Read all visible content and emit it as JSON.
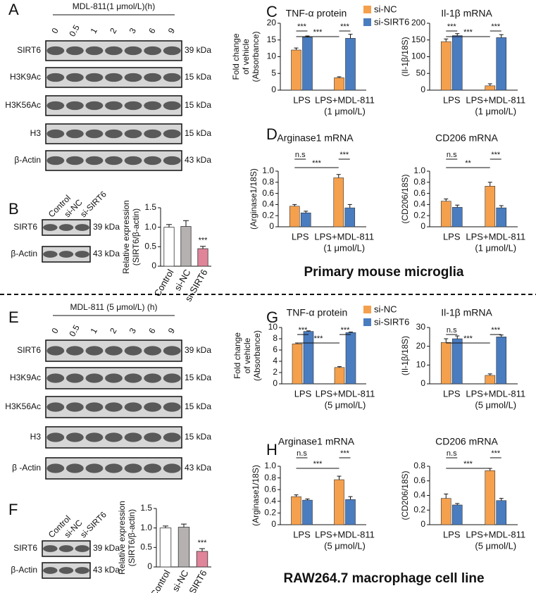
{
  "sections": [
    "Primary mouse microglia",
    "RAW264.7 macrophage cell line"
  ],
  "blots": [
    {
      "panel": "A",
      "header": "MDL-811(1 μmol/L)(h)",
      "lanes": [
        "0",
        "0.5",
        "1",
        "2",
        "3",
        "6",
        "9"
      ],
      "rows": [
        {
          "label": "SIRT6",
          "size": "39 kDa"
        },
        {
          "label": "H3K9Ac",
          "size": "15 kDa"
        },
        {
          "label": "H3K56Ac",
          "size": "15 kDa"
        },
        {
          "label": "H3",
          "size": "15 kDa"
        },
        {
          "label": "β-Actin",
          "size": "43 kDa"
        }
      ]
    },
    {
      "panel": "B",
      "lanes": [
        "Control",
        "si-NC",
        "si-SIRT6"
      ],
      "rows": [
        {
          "label": "SIRT6",
          "size": "39 kDa"
        },
        {
          "label": "β-Actin",
          "size": "43 kDa"
        }
      ]
    },
    {
      "panel": "E",
      "header": "MDL-811 (5 μmol/L) (h)",
      "lanes": [
        "0",
        "0.5",
        "1",
        "2",
        "3",
        "6",
        "9"
      ],
      "rows": [
        {
          "label": "SIRT6",
          "size": "39 kDa"
        },
        {
          "label": "H3K9Ac",
          "size": "15 kDa"
        },
        {
          "label": "H3K56Ac",
          "size": "15 kDa"
        },
        {
          "label": "H3",
          "size": "15 kDa"
        },
        {
          "label": "β -Actin",
          "size": "43 kDa"
        }
      ]
    },
    {
      "panel": "F",
      "lanes": [
        "Control",
        "si-NC",
        "si-SIRT6"
      ],
      "rows": [
        {
          "label": "SIRT6",
          "size": "39 kDa"
        },
        {
          "label": "β-Actin",
          "size": "43 kDa"
        }
      ]
    }
  ],
  "chart_data": [
    {
      "type": "bar",
      "ylabel": [
        "Relative expression",
        "(SIRT6/β-actin)"
      ],
      "categories": [
        "Control",
        "si-NC",
        "si-SIRT6"
      ],
      "values": [
        1.0,
        1.02,
        0.45
      ],
      "errors": [
        0.07,
        0.15,
        0.06
      ],
      "colors": [
        "#ffffff",
        "#b5b1b1",
        "#e0849a"
      ],
      "ylim": [
        0,
        1.5
      ],
      "yticks": [
        0,
        0.5,
        {
          "value": 1,
          "label": "1.0"
        },
        1.5
      ],
      "annotations": [
        "***"
      ]
    },
    {
      "type": "bar",
      "panel": "C",
      "title": "TNF-α protein",
      "ylabel": [
        "Fold change",
        "of vehicle",
        "(Absorbance)"
      ],
      "categories": [
        "LPS",
        "LPS+MDL-811"
      ],
      "category_sublabels": [
        null,
        "(1 μmol/L)"
      ],
      "series": [
        {
          "name": "si-NC",
          "color": "#f5a04d",
          "values": [
            12,
            3.7
          ],
          "errors": [
            0.6,
            0.3
          ]
        },
        {
          "name": "si-SIRT6",
          "color": "#4a7cc0",
          "values": [
            15.8,
            15.5
          ],
          "errors": [
            0.4,
            1.2
          ]
        }
      ],
      "ylim": [
        0,
        20
      ],
      "yticks": [
        0,
        5,
        10,
        15,
        20
      ],
      "annotations": [
        "***",
        "***",
        "***"
      ]
    },
    {
      "type": "bar",
      "title": "Il-1β mRNA",
      "ylabel": [
        "(Il-1β/18S)"
      ],
      "categories": [
        "LPS",
        "LPS+MDL-811"
      ],
      "category_sublabels": [
        null,
        "(1 μmol/L)"
      ],
      "series": [
        {
          "color": "#f5a04d",
          "values": [
            145,
            13
          ],
          "errors": [
            8,
            6
          ]
        },
        {
          "color": "#4a7cc0",
          "values": [
            163,
            157
          ],
          "errors": [
            6,
            9
          ]
        }
      ],
      "ylim": [
        0,
        200
      ],
      "yticks": [
        0,
        50,
        100,
        150,
        200
      ],
      "annotations": [
        "***",
        "***",
        "***"
      ]
    },
    {
      "type": "bar",
      "panel": "D",
      "title": "Arginase1  mRNA",
      "ylabel": [
        "(Arginase1/18S)"
      ],
      "categories": [
        "LPS",
        "LPS+MDL-811"
      ],
      "category_sublabels": [
        null,
        "(1 μmol/L)"
      ],
      "series": [
        {
          "color": "#f5a04d",
          "values": [
            0.37,
            0.88
          ],
          "errors": [
            0.03,
            0.06
          ]
        },
        {
          "color": "#4a7cc0",
          "values": [
            0.25,
            0.34
          ],
          "errors": [
            0.03,
            0.06
          ]
        }
      ],
      "ylim": [
        0,
        1.0
      ],
      "yticks": [
        0,
        0.2,
        0.4,
        0.6,
        0.8,
        {
          "value": 1,
          "label": "1.0"
        }
      ],
      "annotations": [
        "n.s",
        "***",
        "***"
      ]
    },
    {
      "type": "bar",
      "title": "CD206 mRNA",
      "ylabel": [
        "(CD206/18S)"
      ],
      "categories": [
        "LPS",
        "LPS+MDL-811"
      ],
      "category_sublabels": [
        null,
        "(1 μmol/L)"
      ],
      "series": [
        {
          "color": "#f5a04d",
          "values": [
            0.46,
            0.73
          ],
          "errors": [
            0.04,
            0.07
          ]
        },
        {
          "color": "#4a7cc0",
          "values": [
            0.35,
            0.34
          ],
          "errors": [
            0.04,
            0.04
          ]
        }
      ],
      "ylim": [
        0,
        1.0
      ],
      "yticks": [
        0,
        0.2,
        0.4,
        0.6,
        0.8,
        {
          "value": 1,
          "label": "1.0"
        }
      ],
      "annotations": [
        "n.s",
        "**",
        "***"
      ]
    },
    {
      "type": "bar",
      "ylabel": [
        "Relative expression",
        "(SIRT6/β-actin)"
      ],
      "categories": [
        "Control",
        "si-NC",
        "si-SIRT6"
      ],
      "values": [
        1.0,
        1.02,
        0.4
      ],
      "errors": [
        0.05,
        0.08,
        0.07
      ],
      "colors": [
        "#ffffff",
        "#b5b1b1",
        "#e0849a"
      ],
      "ylim": [
        0,
        1.5
      ],
      "yticks": [
        0,
        0.5,
        {
          "value": 1,
          "label": "1.0"
        },
        1.5
      ],
      "annotations": [
        "***"
      ]
    },
    {
      "type": "bar",
      "panel": "G",
      "title": "TNF-α protein",
      "ylabel": [
        "Fold change",
        "of vehicle",
        "(Absorbance)"
      ],
      "categories": [
        "LPS",
        "LPS+MDL-811"
      ],
      "category_sublabels": [
        null,
        "(5 μmol/L)"
      ],
      "series": [
        {
          "name": "si-NC",
          "color": "#f5a04d",
          "values": [
            7.1,
            2.9
          ],
          "errors": [
            0.15,
            0.15
          ]
        },
        {
          "name": "si-SIRT6",
          "color": "#4a7cc0",
          "values": [
            9.3,
            9.1
          ],
          "errors": [
            0.1,
            0.1
          ]
        }
      ],
      "ylim": [
        0,
        10
      ],
      "yticks": [
        0,
        2,
        4,
        6,
        8,
        10
      ],
      "annotations": [
        "***",
        "***",
        "***"
      ]
    },
    {
      "type": "bar",
      "title": "Il-1β mRNA",
      "ylabel": [
        "(Il-1β/18S)"
      ],
      "categories": [
        "LPS",
        "LPS+MDL-811"
      ],
      "category_sublabels": [
        null,
        "(5 μmol/L)"
      ],
      "series": [
        {
          "color": "#f5a04d",
          "values": [
            22,
            4.5
          ],
          "errors": [
            2,
            0.8
          ]
        },
        {
          "color": "#4a7cc0",
          "values": [
            24,
            25
          ],
          "errors": [
            1.5,
            1
          ]
        }
      ],
      "ylim": [
        0,
        30
      ],
      "yticks": [
        0,
        10,
        20,
        30
      ],
      "annotations": [
        "n.s",
        "***",
        "***"
      ]
    },
    {
      "type": "bar",
      "panel": "H",
      "title": "Arginase1  mRNA",
      "ylabel": [
        "(Arginase1/18S)"
      ],
      "categories": [
        "LPS",
        "LPS+MDL-811"
      ],
      "category_sublabels": [
        null,
        "(5 μmol/L)"
      ],
      "series": [
        {
          "color": "#f5a04d",
          "values": [
            0.48,
            0.77
          ],
          "errors": [
            0.03,
            0.06
          ]
        },
        {
          "color": "#4a7cc0",
          "values": [
            0.42,
            0.43
          ],
          "errors": [
            0.02,
            0.05
          ]
        }
      ],
      "ylim": [
        0,
        1.0
      ],
      "yticks": [
        0,
        0.2,
        0.4,
        0.6,
        0.8,
        {
          "value": 1,
          "label": "1.0"
        }
      ],
      "annotations": [
        "n.s",
        "***",
        "***"
      ]
    },
    {
      "type": "bar",
      "title": "CD206 mRNA",
      "ylabel": [
        "(CD206/18S)"
      ],
      "categories": [
        "LPS",
        "LPS+MDL-811"
      ],
      "category_sublabels": [
        null,
        "(5 μmol/L)"
      ],
      "series": [
        {
          "color": "#f5a04d",
          "values": [
            0.36,
            0.74
          ],
          "errors": [
            0.06,
            0.03
          ]
        },
        {
          "color": "#4a7cc0",
          "values": [
            0.27,
            0.33
          ],
          "errors": [
            0.02,
            0.03
          ]
        }
      ],
      "ylim": [
        0,
        0.8
      ],
      "yticks": [
        0,
        0.2,
        0.4,
        0.6,
        0.8
      ],
      "annotations": [
        "n.s",
        "***",
        "***"
      ]
    }
  ]
}
